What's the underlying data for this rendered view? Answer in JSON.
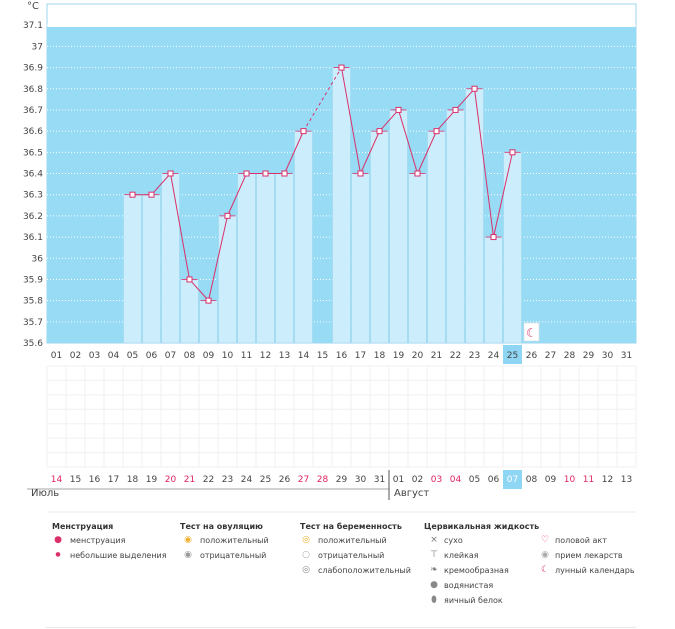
{
  "chart_data": {
    "type": "bar",
    "unit": "°C",
    "ylim": [
      35.6,
      37.2
    ],
    "y_ticks": [
      "35.6",
      "35.7",
      "35.8",
      "35.9",
      "36",
      "36.1",
      "36.2",
      "36.3",
      "36.4",
      "36.5",
      "36.6",
      "36.7",
      "36.8",
      "36.9",
      "37",
      "37.1"
    ],
    "cycle_days": [
      "01",
      "02",
      "03",
      "04",
      "05",
      "06",
      "07",
      "08",
      "09",
      "10",
      "11",
      "12",
      "13",
      "14",
      "15",
      "16",
      "17",
      "18",
      "19",
      "20",
      "21",
      "22",
      "23",
      "24",
      "25",
      "26",
      "27",
      "28",
      "29",
      "30",
      "31"
    ],
    "current_day": "25",
    "temperatures": [
      null,
      null,
      null,
      null,
      36.3,
      36.3,
      36.4,
      35.9,
      35.8,
      36.2,
      36.4,
      36.4,
      36.4,
      36.6,
      null,
      36.9,
      36.4,
      36.6,
      36.7,
      36.4,
      36.6,
      36.7,
      36.8,
      36.1,
      36.5,
      null,
      null,
      null,
      null,
      null,
      null
    ],
    "dashed_segments": [
      [
        14,
        16
      ]
    ],
    "calendar_dates": [
      "14",
      "15",
      "16",
      "17",
      "18",
      "19",
      "20",
      "21",
      "22",
      "23",
      "24",
      "25",
      "26",
      "27",
      "28",
      "29",
      "30",
      "31",
      "01",
      "02",
      "03",
      "04",
      "05",
      "06",
      "07",
      "08",
      "09",
      "10",
      "11",
      "12",
      "13"
    ],
    "weekend_indexes": [
      0,
      6,
      7,
      13,
      14,
      20,
      21,
      27,
      28
    ],
    "today_index": 24,
    "month_start_index": 18,
    "lunar_marker_day": "26"
  },
  "months": {
    "first": "Июль",
    "second": "Август"
  },
  "colors": {
    "band": "#97dbf5",
    "bar": "#cceefc",
    "bar_edge": "#9fd6ee",
    "line": "#d9306a",
    "weekend": "#e0245e",
    "today": "#8fd6f5",
    "text": "#444444"
  },
  "legend": {
    "menstruation": {
      "title": "Менструация",
      "items": [
        "менструация",
        "небольшие выделения"
      ]
    },
    "ovulation": {
      "title": "Тест на овуляцию",
      "items": [
        "положительный",
        "отрицательный"
      ]
    },
    "pregnancy": {
      "title": "Тест на беременность",
      "items": [
        "положительный",
        "отрицательный",
        "слабоположительный"
      ]
    },
    "cervical": {
      "title": "Цервикальная жидкость",
      "items": [
        "сухо",
        "клейкая",
        "кремообразная",
        "водянистая",
        "яичный белок"
      ]
    },
    "other": {
      "items": [
        "половой акт",
        "прием лекарств",
        "лунный календарь"
      ]
    }
  }
}
